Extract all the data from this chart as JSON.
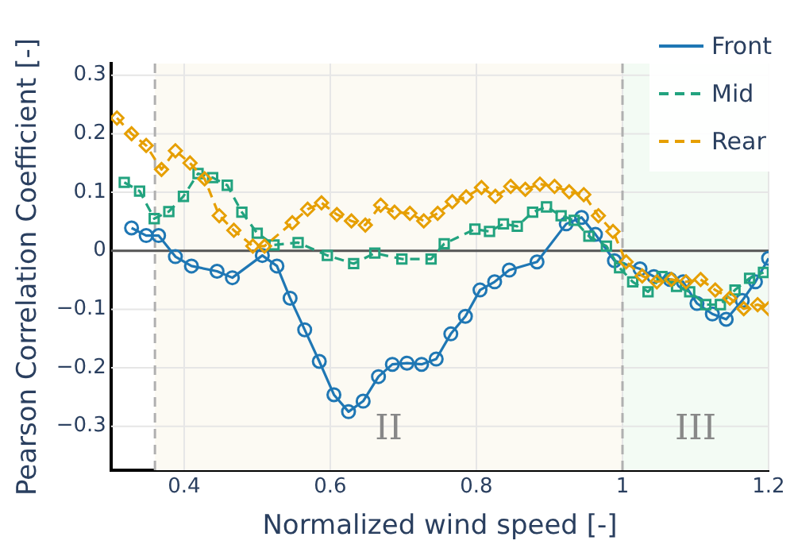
{
  "chart_data": {
    "type": "line",
    "xlabel": "Normalized wind speed [-]",
    "ylabel": "Pearson Correlation Coefficient [-]",
    "xlim": [
      0.3,
      1.2
    ],
    "ylim": [
      -0.375,
      0.32
    ],
    "xticks": [
      0.4,
      0.6,
      0.8,
      1,
      1.2
    ],
    "yticks": [
      0.3,
      0.2,
      0.1,
      0,
      {
        "value": -0.1,
        "label": "−0.1"
      },
      {
        "value": -0.2,
        "label": "−0.2"
      },
      {
        "value": -0.3,
        "label": "−0.3"
      }
    ],
    "grid": true,
    "legend": "top right",
    "bands": [
      {
        "axis": "x",
        "from": 0.36,
        "to": 1,
        "label": "II",
        "color": "#fcfaf3"
      },
      {
        "axis": "x",
        "from": 1,
        "to": 1.2,
        "label": "III",
        "color": "#f3fbf4"
      }
    ],
    "ref_lines": [
      {
        "axis": "x",
        "value": 0.36,
        "color": "#b0b0b0",
        "line_style": "dashed"
      },
      {
        "axis": "x",
        "value": 1,
        "color": "#b0b0b0",
        "line_style": "dashed"
      },
      {
        "axis": "y",
        "value": 0,
        "color": "#555555",
        "line_style": "solid"
      }
    ],
    "series": [
      {
        "name": "Front",
        "color": "#1f77b4",
        "marker": "circle",
        "line_style": "solid",
        "x": [
          0.328,
          0.348,
          0.365,
          0.388,
          0.41,
          0.445,
          0.466,
          0.507,
          0.527,
          0.545,
          0.565,
          0.585,
          0.605,
          0.625,
          0.645,
          0.666,
          0.685,
          0.705,
          0.725,
          0.745,
          0.765,
          0.785,
          0.805,
          0.825,
          0.845,
          0.883,
          0.923,
          0.944,
          0.963,
          0.989,
          1.024,
          1.043,
          1.065,
          1.083,
          1.102,
          1.123,
          1.142,
          1.164,
          1.182,
          1.2
        ],
        "values": [
          0.039,
          0.026,
          0.026,
          -0.01,
          -0.026,
          -0.035,
          -0.046,
          -0.008,
          -0.026,
          -0.081,
          -0.135,
          -0.189,
          -0.246,
          -0.275,
          -0.257,
          -0.215,
          -0.194,
          -0.192,
          -0.194,
          -0.185,
          -0.142,
          -0.112,
          -0.067,
          -0.053,
          -0.033,
          -0.019,
          0.046,
          0.057,
          0.028,
          -0.017,
          -0.031,
          -0.044,
          -0.049,
          -0.053,
          -0.09,
          -0.108,
          -0.117,
          -0.085,
          -0.053,
          -0.013
        ]
      },
      {
        "name": "Mid",
        "color": "#22a37f",
        "marker": "square",
        "line_style": "dashed",
        "x": [
          0.318,
          0.339,
          0.359,
          0.379,
          0.399,
          0.419,
          0.439,
          0.459,
          0.479,
          0.5,
          0.523,
          0.556,
          0.596,
          0.632,
          0.661,
          0.698,
          0.738,
          0.756,
          0.798,
          0.818,
          0.837,
          0.856,
          0.877,
          0.896,
          0.916,
          0.934,
          0.954,
          0.978,
          0.996,
          1.014,
          1.035,
          1.054,
          1.074,
          1.092,
          1.114,
          1.134,
          1.154,
          1.174,
          1.193
        ],
        "values": [
          0.117,
          0.102,
          0.055,
          0.067,
          0.093,
          0.132,
          0.125,
          0.112,
          0.066,
          0.03,
          0.01,
          0.014,
          -0.008,
          -0.022,
          -0.004,
          -0.014,
          -0.014,
          0.012,
          0.037,
          0.033,
          0.046,
          0.042,
          0.066,
          0.075,
          0.06,
          0.052,
          0.025,
          0.008,
          -0.029,
          -0.053,
          -0.07,
          -0.044,
          -0.061,
          -0.07,
          -0.092,
          -0.092,
          -0.067,
          -0.047,
          -0.037
        ]
      },
      {
        "name": "Rear",
        "color": "#e69f00",
        "marker": "diamond",
        "line_style": "dashed",
        "x": [
          0.308,
          0.328,
          0.348,
          0.369,
          0.388,
          0.408,
          0.428,
          0.448,
          0.468,
          0.494,
          0.51,
          0.548,
          0.569,
          0.588,
          0.609,
          0.629,
          0.648,
          0.669,
          0.688,
          0.709,
          0.728,
          0.747,
          0.767,
          0.786,
          0.807,
          0.826,
          0.847,
          0.867,
          0.887,
          0.907,
          0.927,
          0.947,
          0.967,
          0.987,
          1.005,
          1.027,
          1.047,
          1.067,
          1.087,
          1.107,
          1.127,
          1.147,
          1.166,
          1.185,
          1.2
        ],
        "values": [
          0.227,
          0.2,
          0.18,
          0.139,
          0.171,
          0.15,
          0.123,
          0.06,
          0.035,
          0.008,
          0.008,
          0.048,
          0.071,
          0.082,
          0.062,
          0.051,
          0.044,
          0.078,
          0.066,
          0.064,
          0.051,
          0.064,
          0.084,
          0.092,
          0.108,
          0.093,
          0.11,
          0.105,
          0.114,
          0.11,
          0.101,
          0.096,
          0.06,
          0.033,
          -0.019,
          -0.043,
          -0.053,
          -0.049,
          -0.053,
          -0.049,
          -0.067,
          -0.081,
          -0.099,
          -0.092,
          -0.099
        ]
      }
    ]
  }
}
